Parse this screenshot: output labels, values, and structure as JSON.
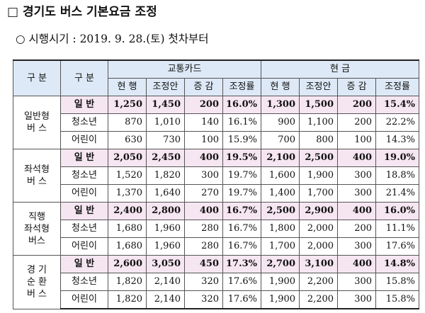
{
  "page": {
    "title": "□ 경기도 버스 기본요금 조정",
    "subtitle": "○ 시행시기 : 2019. 9. 28.(토) 첫차부터"
  },
  "table": {
    "headers": {
      "group": "구 분",
      "sub": "구 분",
      "card": "교통카드",
      "cash": "현 금",
      "cols": [
        "현 행",
        "조정안",
        "증 감",
        "조정률",
        "현 행",
        "조정안",
        "증 감",
        "조정률"
      ]
    },
    "groups": [
      {
        "name": "일반형\n버 스",
        "rows": [
          {
            "type": "일 반",
            "values": [
              "1,250",
              "1,450",
              "200",
              "16.0%",
              "1,300",
              "1,500",
              "200",
              "15.4%"
            ]
          },
          {
            "type": "청소년",
            "values": [
              "870",
              "1,010",
              "140",
              "16.1%",
              "900",
              "1,100",
              "200",
              "22.2%"
            ]
          },
          {
            "type": "어린이",
            "values": [
              "630",
              "730",
              "100",
              "15.9%",
              "700",
              "800",
              "100",
              "14.3%"
            ]
          }
        ]
      },
      {
        "name": "좌석형\n버 스",
        "rows": [
          {
            "type": "일 반",
            "values": [
              "2,050",
              "2,450",
              "400",
              "19.5%",
              "2,100",
              "2,500",
              "400",
              "19.0%"
            ]
          },
          {
            "type": "청소년",
            "values": [
              "1,520",
              "1,820",
              "300",
              "19.7%",
              "1,600",
              "1,900",
              "300",
              "18.8%"
            ]
          },
          {
            "type": "어린이",
            "values": [
              "1,370",
              "1,640",
              "270",
              "19.7%",
              "1,400",
              "1,700",
              "300",
              "21.4%"
            ]
          }
        ]
      },
      {
        "name": "직행\n좌석형\n버스",
        "rows": [
          {
            "type": "일 반",
            "values": [
              "2,400",
              "2,800",
              "400",
              "16.7%",
              "2,500",
              "2,900",
              "400",
              "16.0%"
            ]
          },
          {
            "type": "청소년",
            "values": [
              "1,680",
              "1,960",
              "280",
              "16.7%",
              "1,800",
              "2,000",
              "200",
              "11.1%"
            ]
          },
          {
            "type": "어린이",
            "values": [
              "1,680",
              "1,960",
              "280",
              "16.7%",
              "1,700",
              "2,000",
              "300",
              "17.6%"
            ]
          }
        ]
      },
      {
        "name": "경  기\n순  환\n버  스",
        "rows": [
          {
            "type": "일 반",
            "values": [
              "2,600",
              "3,050",
              "450",
              "17.3%",
              "2,700",
              "3,100",
              "400",
              "14.8%"
            ]
          },
          {
            "type": "청소년",
            "values": [
              "1,820",
              "2,140",
              "320",
              "17.6%",
              "1,900",
              "2,200",
              "300",
              "15.8%"
            ]
          },
          {
            "type": "어린이",
            "values": [
              "1,820",
              "2,140",
              "320",
              "17.6%",
              "1,900",
              "2,200",
              "300",
              "15.8%"
            ]
          }
        ]
      }
    ]
  }
}
